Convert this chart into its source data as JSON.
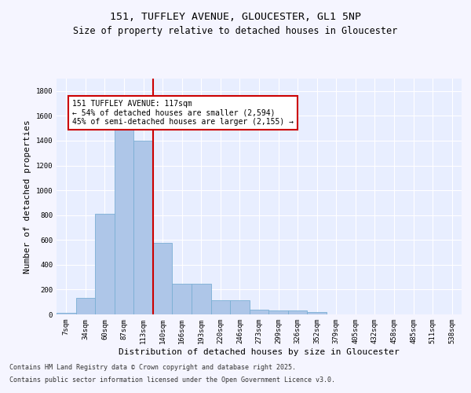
{
  "title_line1": "151, TUFFLEY AVENUE, GLOUCESTER, GL1 5NP",
  "title_line2": "Size of property relative to detached houses in Gloucester",
  "xlabel": "Distribution of detached houses by size in Gloucester",
  "ylabel": "Number of detached properties",
  "categories": [
    "7sqm",
    "34sqm",
    "60sqm",
    "87sqm",
    "113sqm",
    "140sqm",
    "166sqm",
    "193sqm",
    "220sqm",
    "246sqm",
    "273sqm",
    "299sqm",
    "326sqm",
    "352sqm",
    "379sqm",
    "405sqm",
    "432sqm",
    "458sqm",
    "485sqm",
    "511sqm",
    "538sqm"
  ],
  "values": [
    10,
    130,
    810,
    1500,
    1400,
    575,
    250,
    250,
    115,
    115,
    35,
    30,
    30,
    20,
    0,
    0,
    0,
    0,
    0,
    0,
    0
  ],
  "bar_color": "#aec6e8",
  "bar_edge_color": "#7aafd4",
  "annotation_text": "151 TUFFLEY AVENUE: 117sqm\n← 54% of detached houses are smaller (2,594)\n45% of semi-detached houses are larger (2,155) →",
  "annotation_box_color": "#ffffff",
  "annotation_box_edge_color": "#cc0000",
  "vline_color": "#cc0000",
  "vline_x": 4.5,
  "ylim": [
    0,
    1900
  ],
  "yticks": [
    0,
    200,
    400,
    600,
    800,
    1000,
    1200,
    1400,
    1600,
    1800
  ],
  "background_color": "#e8eeff",
  "grid_color": "#ffffff",
  "fig_bg_color": "#f5f5ff",
  "footer_line1": "Contains HM Land Registry data © Crown copyright and database right 2025.",
  "footer_line2": "Contains public sector information licensed under the Open Government Licence v3.0.",
  "title_fontsize": 9.5,
  "subtitle_fontsize": 8.5,
  "axis_label_fontsize": 8,
  "tick_fontsize": 6.5,
  "annotation_fontsize": 7,
  "footer_fontsize": 6
}
